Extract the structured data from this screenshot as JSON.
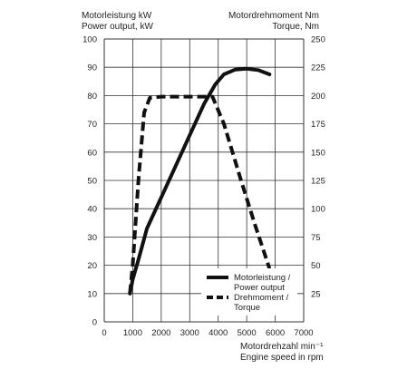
{
  "chart_data": {
    "type": "line",
    "left_axis_label": [
      "Motorleistung kW",
      "Power output, kW"
    ],
    "right_axis_label": [
      "Motordrehmoment Nm",
      "Torque, Nm"
    ],
    "x_axis_label": [
      "Motordrehzahl min⁻¹",
      "Engine speed in rpm"
    ],
    "xlim": [
      0,
      7000
    ],
    "ylim_left": [
      0,
      100
    ],
    "ylim_right": [
      0,
      250
    ],
    "x_ticks": [
      "0",
      "1000",
      "2000",
      "3000",
      "4000",
      "5000",
      "6000",
      "7000"
    ],
    "y_ticks_left": [
      "0",
      "10",
      "20",
      "30",
      "40",
      "50",
      "60",
      "70",
      "80",
      "90",
      "100"
    ],
    "y_ticks_right": [
      "",
      "25",
      "50",
      "75",
      "100",
      "125",
      "150",
      "175",
      "200",
      "225",
      "250"
    ],
    "grid": true,
    "legend_position": "bottom-right",
    "series": [
      {
        "name": "Motorleistung / Power output",
        "axis": "left",
        "style": "solid",
        "points": [
          [
            900,
            10
          ],
          [
            1000,
            15
          ],
          [
            1200,
            22
          ],
          [
            1500,
            33
          ],
          [
            2000,
            44
          ],
          [
            2500,
            55
          ],
          [
            3000,
            66
          ],
          [
            3500,
            77
          ],
          [
            3900,
            84
          ],
          [
            4200,
            87.5
          ],
          [
            4600,
            89.2
          ],
          [
            5000,
            89.5
          ],
          [
            5400,
            89
          ],
          [
            5800,
            87.5
          ]
        ]
      },
      {
        "name": "Drehmoment / Torque",
        "axis": "right",
        "style": "dashed",
        "points": [
          [
            900,
            25
          ],
          [
            1000,
            50
          ],
          [
            1200,
            125
          ],
          [
            1400,
            185
          ],
          [
            1600,
            198
          ],
          [
            2000,
            199
          ],
          [
            3000,
            199
          ],
          [
            3800,
            199
          ],
          [
            4200,
            175
          ],
          [
            4800,
            125
          ],
          [
            5300,
            85
          ],
          [
            5800,
            47
          ]
        ]
      }
    ],
    "legend": [
      {
        "lines": [
          "Motorleistung /",
          "Power output"
        ],
        "style": "solid"
      },
      {
        "lines": [
          "Drehmoment /",
          "Torque"
        ],
        "style": "dashed"
      }
    ]
  }
}
